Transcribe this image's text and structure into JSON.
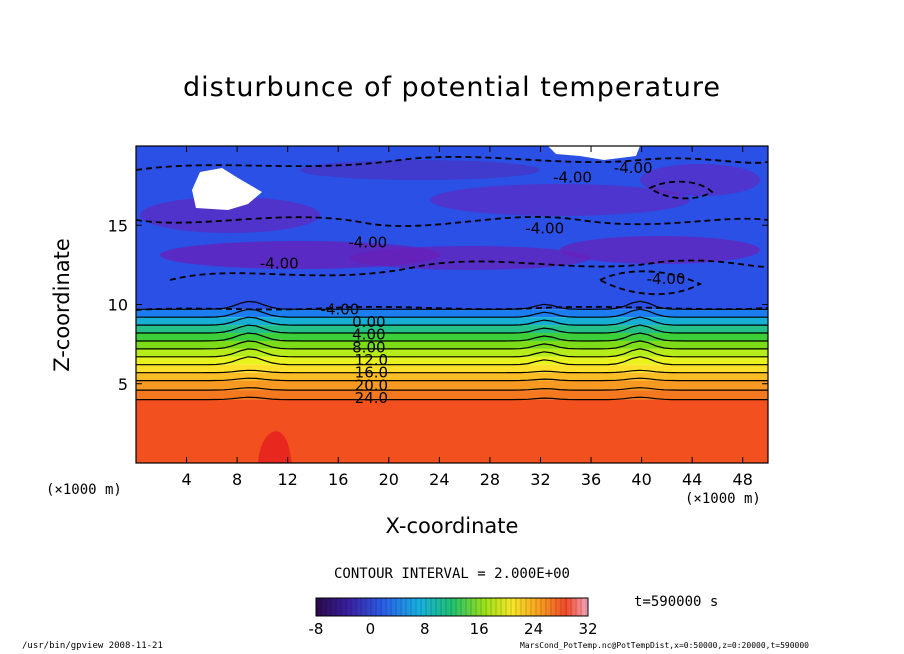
{
  "chart_data": {
    "type": "heatmap",
    "title": "disturbunce of potential temperature",
    "xlabel": "X-coordinate",
    "ylabel": "Z-coordinate",
    "x_unit_left": "(×1000 m)",
    "x_unit_right": "(×1000 m)",
    "xlim": [
      0,
      50
    ],
    "ylim": [
      0,
      20
    ],
    "x_ticks": [
      4,
      8,
      12,
      16,
      20,
      24,
      28,
      32,
      36,
      40,
      44,
      48
    ],
    "y_ticks": [
      5,
      10,
      15
    ],
    "bands": [
      {
        "z_bottom": 0,
        "z_top": 4.0,
        "value": 26,
        "color": "#f2501e"
      },
      {
        "z_bottom": 4.0,
        "z_top": 4.6,
        "value": 24,
        "color": "#f4781e"
      },
      {
        "z_bottom": 4.6,
        "z_top": 5.2,
        "value": 22,
        "color": "#f89a22"
      },
      {
        "z_bottom": 5.2,
        "z_top": 5.7,
        "value": 20,
        "color": "#fbbd25"
      },
      {
        "z_bottom": 5.7,
        "z_top": 6.2,
        "value": 18,
        "color": "#ffe02a"
      },
      {
        "z_bottom": 6.2,
        "z_top": 6.7,
        "value": 16,
        "color": "#e8f21c"
      },
      {
        "z_bottom": 6.7,
        "z_top": 7.2,
        "value": 14,
        "color": "#b6ec1a"
      },
      {
        "z_bottom": 7.2,
        "z_top": 7.7,
        "value": 12,
        "color": "#7ddc18"
      },
      {
        "z_bottom": 7.7,
        "z_top": 8.2,
        "value": 8,
        "color": "#3ccf3a"
      },
      {
        "z_bottom": 8.2,
        "z_top": 8.7,
        "value": 4,
        "color": "#24c08a"
      },
      {
        "z_bottom": 8.7,
        "z_top": 9.2,
        "value": 2,
        "color": "#16aed2"
      },
      {
        "z_bottom": 9.2,
        "z_top": 9.7,
        "value": 0,
        "color": "#1c7df0"
      },
      {
        "z_bottom": 9.7,
        "z_top": 20.0,
        "value": -2,
        "color": "#2a50e6"
      }
    ],
    "contour_labels": [
      {
        "x": 16.8,
        "z": 13.9,
        "text": "-4.00"
      },
      {
        "x": 9.8,
        "z": 12.6,
        "text": "-4.00"
      },
      {
        "x": 33.0,
        "z": 18.0,
        "text": "-4.00"
      },
      {
        "x": 37.8,
        "z": 18.6,
        "text": "-4.00"
      },
      {
        "x": 30.8,
        "z": 14.8,
        "text": "-4.00"
      },
      {
        "x": 40.4,
        "z": 11.6,
        "text": "-4.00"
      },
      {
        "x": 14.6,
        "z": 9.7,
        "text": "-4.00"
      },
      {
        "x": 17.1,
        "z": 8.9,
        "text": "0.00"
      },
      {
        "x": 17.1,
        "z": 8.1,
        "text": "4.00"
      },
      {
        "x": 17.1,
        "z": 7.3,
        "text": "8.00"
      },
      {
        "x": 17.3,
        "z": 6.5,
        "text": "12.0"
      },
      {
        "x": 17.3,
        "z": 5.7,
        "text": "16.0"
      },
      {
        "x": 17.3,
        "z": 4.9,
        "text": "20.0"
      },
      {
        "x": 17.3,
        "z": 4.1,
        "text": "24.0"
      }
    ],
    "colorbar": {
      "min": -8,
      "max": 32,
      "tick_labels": [
        "-8",
        "0",
        "8",
        "16",
        "24",
        "32"
      ],
      "tick_values": [
        -8,
        0,
        8,
        16,
        24,
        32
      ]
    }
  },
  "contour_interval": "CONTOUR INTERVAL = 2.000E+00",
  "time_label": "t=590000 s",
  "footer_left": "/usr/bin/gpview  2008-11-21",
  "footer_right": "MarsCond_PotTemp.nc@PotTempDist,x=0:50000,z=0:20000,t=590000",
  "colors": {
    "deep_purple": "#6a1fb8",
    "upper_blue": "#2a50e6",
    "surface_orange": "#f2501e"
  }
}
